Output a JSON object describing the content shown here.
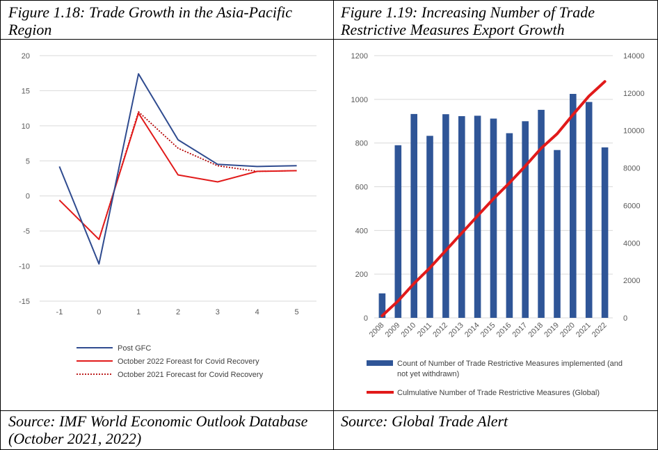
{
  "left": {
    "caption": "Figure 1.18: Trade Growth in the Asia-Pacific Region",
    "source": "Source: IMF World Economic Outlook Database (October 2021, 2022)"
  },
  "right": {
    "caption": "Figure 1.19: Increasing Number of Trade Restrictive Measures Export Growth",
    "source": "Source: Global Trade Alert"
  },
  "colors": {
    "blue": "#2f4b8f",
    "red": "#e11a1a",
    "dark_red": "#b40000",
    "bar": "#2f5597",
    "grid": "#d9d9d9",
    "tick_text": "#595959"
  },
  "chart_data": [
    {
      "type": "line",
      "x": [
        -1,
        0,
        1,
        2,
        3,
        4,
        5
      ],
      "ylim": [
        -15,
        20
      ],
      "yticks": [
        -15,
        -10,
        -5,
        0,
        5,
        10,
        15,
        20
      ],
      "grid": true,
      "legend_position": "bottom",
      "series": [
        {
          "name": "Post GFC",
          "style": "solid",
          "color": "#2f4b8f",
          "values": [
            4.2,
            -9.7,
            17.4,
            8.0,
            4.5,
            4.2,
            4.3
          ]
        },
        {
          "name": "October 2022 Foreast for Covid Recovery",
          "style": "solid",
          "color": "#e11a1a",
          "values": [
            -0.6,
            -6.2,
            11.8,
            3.0,
            2.0,
            3.5,
            3.6
          ]
        },
        {
          "name": "October 2021 Forecast for Covid Recovery",
          "style": "dotted",
          "color": "#b40000",
          "values": null,
          "values_list": [
            -0.6,
            -6.2,
            12.0,
            6.8,
            4.3,
            3.5,
            3.6
          ]
        }
      ]
    },
    {
      "type": "bar+line",
      "categories": [
        "2008",
        "2009",
        "2010",
        "2011",
        "2012",
        "2013",
        "2014",
        "2015",
        "2016",
        "2017",
        "2018",
        "2019",
        "2020",
        "2021",
        "2022"
      ],
      "ylim_left": [
        0,
        1200
      ],
      "yticks_left": [
        0,
        200,
        400,
        600,
        800,
        1000,
        1200
      ],
      "ylim_right": [
        0,
        14000
      ],
      "yticks_right": [
        0,
        2000,
        4000,
        6000,
        8000,
        10000,
        12000,
        14000
      ],
      "grid": true,
      "legend_position": "bottom",
      "series": [
        {
          "name": "Count of Number of Trade Restrictive Measures implemented (and not yet withdrawn)",
          "kind": "bar",
          "axis": "left",
          "color": "#2f5597",
          "values": [
            112,
            790,
            933,
            833,
            932,
            923,
            925,
            912,
            845,
            900,
            952,
            768,
            1025,
            988,
            780
          ]
        },
        {
          "name": "Culmulative Number of Trade Restrictive Measures (Global)",
          "kind": "line",
          "axis": "right",
          "color": "#e11a1a",
          "values": [
            112,
            902,
            1835,
            2668,
            3600,
            4523,
            5448,
            6360,
            7205,
            8105,
            9057,
            9825,
            10850,
            11838,
            12618
          ]
        }
      ]
    }
  ]
}
